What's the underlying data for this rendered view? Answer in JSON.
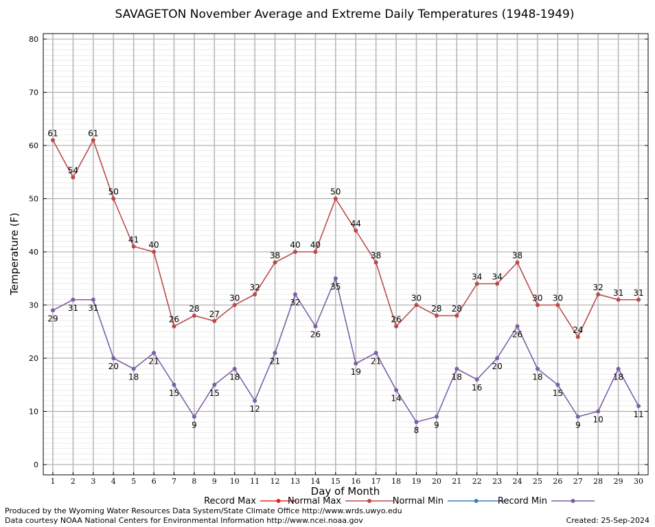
{
  "chart_data": {
    "type": "line",
    "title": "SAVAGETON November Average and Extreme Daily Temperatures (1948-1949)",
    "xlabel": "Day of Month",
    "ylabel": "Temperature (F)",
    "ylim": [
      0,
      80
    ],
    "yticks": [
      0,
      10,
      20,
      30,
      40,
      50,
      60,
      70,
      80
    ],
    "x": [
      1,
      2,
      3,
      4,
      5,
      6,
      7,
      8,
      9,
      10,
      11,
      12,
      13,
      14,
      15,
      16,
      17,
      18,
      19,
      20,
      21,
      22,
      23,
      24,
      25,
      26,
      27,
      28,
      29,
      30
    ],
    "grid": true,
    "legend_position": "bottom",
    "series": [
      {
        "name": "Record Max",
        "color": "#e8231f",
        "values": [
          61,
          54,
          61,
          50,
          41,
          40,
          26,
          28,
          27,
          30,
          32,
          38,
          40,
          40,
          50,
          44,
          38,
          26,
          30,
          28,
          28,
          34,
          34,
          38,
          30,
          30,
          24,
          32,
          31,
          31
        ]
      },
      {
        "name": "Normal Max",
        "color": "#b94a4a",
        "values": [
          61,
          54,
          61,
          50,
          41,
          40,
          26,
          28,
          27,
          30,
          32,
          38,
          40,
          40,
          50,
          44,
          38,
          26,
          30,
          28,
          28,
          34,
          34,
          38,
          30,
          30,
          24,
          32,
          31,
          31
        ]
      },
      {
        "name": "Normal Min",
        "color": "#3f7fc1",
        "values": [
          29,
          31,
          31,
          20,
          18,
          21,
          15,
          9,
          15,
          18,
          12,
          21,
          32,
          26,
          35,
          19,
          21,
          14,
          8,
          9,
          18,
          16,
          20,
          26,
          18,
          15,
          9,
          10,
          18,
          11
        ]
      },
      {
        "name": "Record Min",
        "color": "#7b5ea7",
        "values": [
          29,
          31,
          31,
          20,
          18,
          21,
          15,
          9,
          15,
          18,
          12,
          21,
          32,
          26,
          35,
          19,
          21,
          14,
          8,
          9,
          18,
          16,
          20,
          26,
          18,
          15,
          9,
          10,
          18,
          11
        ]
      }
    ],
    "max_labels": [
      61,
      54,
      61,
      50,
      41,
      40,
      26,
      28,
      27,
      30,
      32,
      38,
      40,
      40,
      50,
      44,
      38,
      26,
      30,
      28,
      28,
      34,
      34,
      38,
      30,
      30,
      24,
      32,
      31,
      31
    ],
    "min_labels": [
      29,
      31,
      31,
      20,
      18,
      21,
      15,
      9,
      15,
      18,
      12,
      21,
      32,
      26,
      35,
      19,
      21,
      14,
      8,
      9,
      18,
      16,
      20,
      26,
      18,
      15,
      9,
      10,
      18,
      11
    ]
  },
  "footer": {
    "produced_by": "Produced by the Wyoming Water Resources Data System/State Climate Office http://www.wrds.uwyo.edu",
    "data_courtesy": "Data courtesy NOAA National Centers for Environmental Information http://www.ncei.noaa.gov",
    "created": "Created:  25-Sep-2024"
  }
}
